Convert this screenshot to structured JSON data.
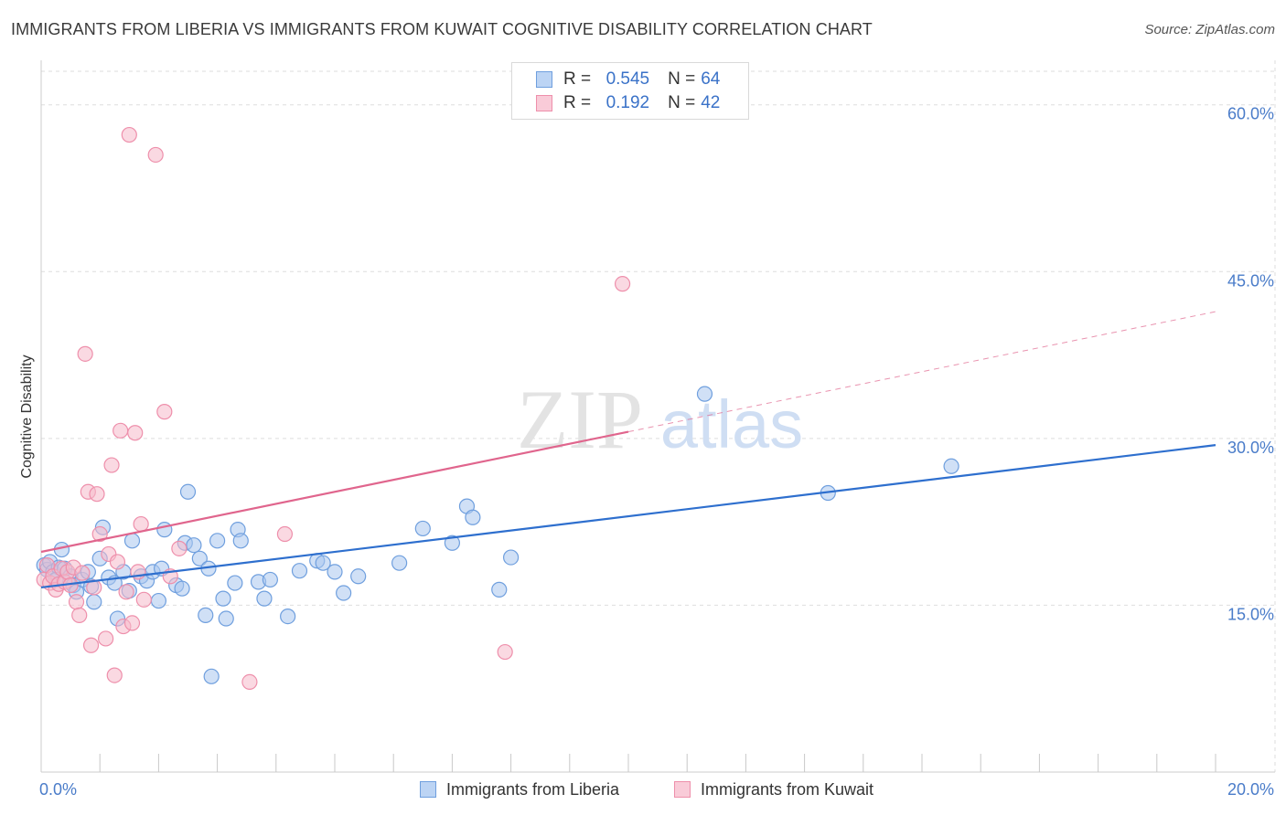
{
  "title": "IMMIGRANTS FROM LIBERIA VS IMMIGRANTS FROM KUWAIT COGNITIVE DISABILITY CORRELATION CHART",
  "source": "Source: ZipAtlas.com",
  "watermark": {
    "zip": "ZIP",
    "atlas": "atlas"
  },
  "colors": {
    "liberia_fill": "#a9c7ef",
    "liberia_stroke": "#6f9fde",
    "liberia_line": "#2e6fce",
    "kuwait_fill": "#f6b9cb",
    "kuwait_stroke": "#ee8fab",
    "kuwait_line": "#e0658d",
    "tick_text": "#4a7cc9",
    "grid": "#dedede"
  },
  "legend": {
    "rows": [
      {
        "r_label": "R =",
        "r_value": "0.545",
        "n_label": "N =",
        "n_value": "64"
      },
      {
        "r_label": "R =",
        "r_value": "0.192",
        "n_label": "N =",
        "n_value": "42"
      }
    ]
  },
  "bottom_legend": [
    "Immigrants from Liberia",
    "Immigrants from Kuwait"
  ],
  "chart_data": {
    "type": "scatter",
    "title": "IMMIGRANTS FROM LIBERIA VS IMMIGRANTS FROM KUWAIT COGNITIVE DISABILITY CORRELATION CHART",
    "xlabel": "",
    "ylabel": "Cognitive Disability",
    "xlim": [
      0,
      20
    ],
    "ylim": [
      0,
      64
    ],
    "x_tick_labels": [
      "0.0%",
      "20.0%"
    ],
    "y_ticks": [
      15,
      30,
      45,
      60
    ],
    "y_tick_labels": [
      "15.0%",
      "30.0%",
      "45.0%",
      "60.0%"
    ],
    "grid": true,
    "legend_position": "top-center",
    "series": [
      {
        "name": "Immigrants from Liberia",
        "r": 0.545,
        "n": 64,
        "trend": {
          "x": [
            0,
            20
          ],
          "y": [
            16.6,
            29.4
          ],
          "dashed_from_x": null
        },
        "points": [
          [
            0.05,
            18.6
          ],
          [
            0.1,
            18.2
          ],
          [
            0.15,
            18.9
          ],
          [
            0.2,
            18.0
          ],
          [
            0.3,
            18.4
          ],
          [
            0.35,
            20.0
          ],
          [
            0.4,
            18.3
          ],
          [
            0.5,
            17.6
          ],
          [
            0.55,
            16.8
          ],
          [
            0.6,
            16.2
          ],
          [
            0.7,
            17.3
          ],
          [
            0.8,
            18.0
          ],
          [
            0.85,
            16.7
          ],
          [
            0.9,
            15.3
          ],
          [
            1.0,
            19.2
          ],
          [
            1.05,
            22.0
          ],
          [
            1.15,
            17.5
          ],
          [
            1.25,
            17.0
          ],
          [
            1.3,
            13.8
          ],
          [
            1.4,
            18.0
          ],
          [
            1.5,
            16.3
          ],
          [
            1.55,
            20.8
          ],
          [
            1.7,
            17.6
          ],
          [
            1.8,
            17.2
          ],
          [
            1.9,
            18.0
          ],
          [
            2.0,
            15.4
          ],
          [
            2.05,
            18.3
          ],
          [
            2.1,
            21.8
          ],
          [
            2.3,
            16.8
          ],
          [
            2.4,
            16.5
          ],
          [
            2.45,
            20.6
          ],
          [
            2.5,
            25.2
          ],
          [
            2.6,
            20.4
          ],
          [
            2.7,
            19.2
          ],
          [
            2.8,
            14.1
          ],
          [
            2.85,
            18.3
          ],
          [
            2.9,
            8.6
          ],
          [
            3.0,
            20.8
          ],
          [
            3.1,
            15.6
          ],
          [
            3.15,
            13.8
          ],
          [
            3.3,
            17.0
          ],
          [
            3.35,
            21.8
          ],
          [
            3.4,
            20.8
          ],
          [
            3.7,
            17.1
          ],
          [
            3.8,
            15.6
          ],
          [
            3.9,
            17.3
          ],
          [
            4.2,
            14.0
          ],
          [
            4.4,
            18.1
          ],
          [
            4.7,
            19.0
          ],
          [
            4.8,
            18.8
          ],
          [
            5.0,
            18.0
          ],
          [
            5.15,
            16.1
          ],
          [
            5.4,
            17.6
          ],
          [
            6.1,
            18.8
          ],
          [
            6.5,
            21.9
          ],
          [
            7.0,
            20.6
          ],
          [
            7.25,
            23.9
          ],
          [
            7.35,
            22.9
          ],
          [
            7.8,
            16.4
          ],
          [
            8.0,
            19.3
          ],
          [
            11.3,
            34.0
          ],
          [
            13.4,
            25.1
          ],
          [
            15.5,
            27.5
          ],
          [
            0.25,
            17.3
          ]
        ]
      },
      {
        "name": "Immigrants from Kuwait",
        "r": 0.192,
        "n": 42,
        "trend": {
          "x": [
            0,
            20
          ],
          "y": [
            19.8,
            41.4
          ],
          "dashed_from_x": 10.0
        },
        "points": [
          [
            0.05,
            17.3
          ],
          [
            0.1,
            18.6
          ],
          [
            0.15,
            17.0
          ],
          [
            0.2,
            17.6
          ],
          [
            0.25,
            16.4
          ],
          [
            0.3,
            16.9
          ],
          [
            0.35,
            18.3
          ],
          [
            0.4,
            17.1
          ],
          [
            0.45,
            18.0
          ],
          [
            0.5,
            16.8
          ],
          [
            0.55,
            18.4
          ],
          [
            0.6,
            15.3
          ],
          [
            0.65,
            14.1
          ],
          [
            0.7,
            17.9
          ],
          [
            0.75,
            37.6
          ],
          [
            0.8,
            25.2
          ],
          [
            0.85,
            11.4
          ],
          [
            0.9,
            16.6
          ],
          [
            0.95,
            25.0
          ],
          [
            1.0,
            21.4
          ],
          [
            1.1,
            12.0
          ],
          [
            1.15,
            19.6
          ],
          [
            1.2,
            27.6
          ],
          [
            1.25,
            8.7
          ],
          [
            1.3,
            18.9
          ],
          [
            1.35,
            30.7
          ],
          [
            1.4,
            13.1
          ],
          [
            1.45,
            16.2
          ],
          [
            1.5,
            57.3
          ],
          [
            1.55,
            13.4
          ],
          [
            1.6,
            30.5
          ],
          [
            1.65,
            18.0
          ],
          [
            1.7,
            22.3
          ],
          [
            1.75,
            15.5
          ],
          [
            1.95,
            55.5
          ],
          [
            2.1,
            32.4
          ],
          [
            2.2,
            17.6
          ],
          [
            2.35,
            20.1
          ],
          [
            3.55,
            8.1
          ],
          [
            4.15,
            21.4
          ],
          [
            7.9,
            10.8
          ],
          [
            9.9,
            43.9
          ]
        ]
      }
    ]
  }
}
